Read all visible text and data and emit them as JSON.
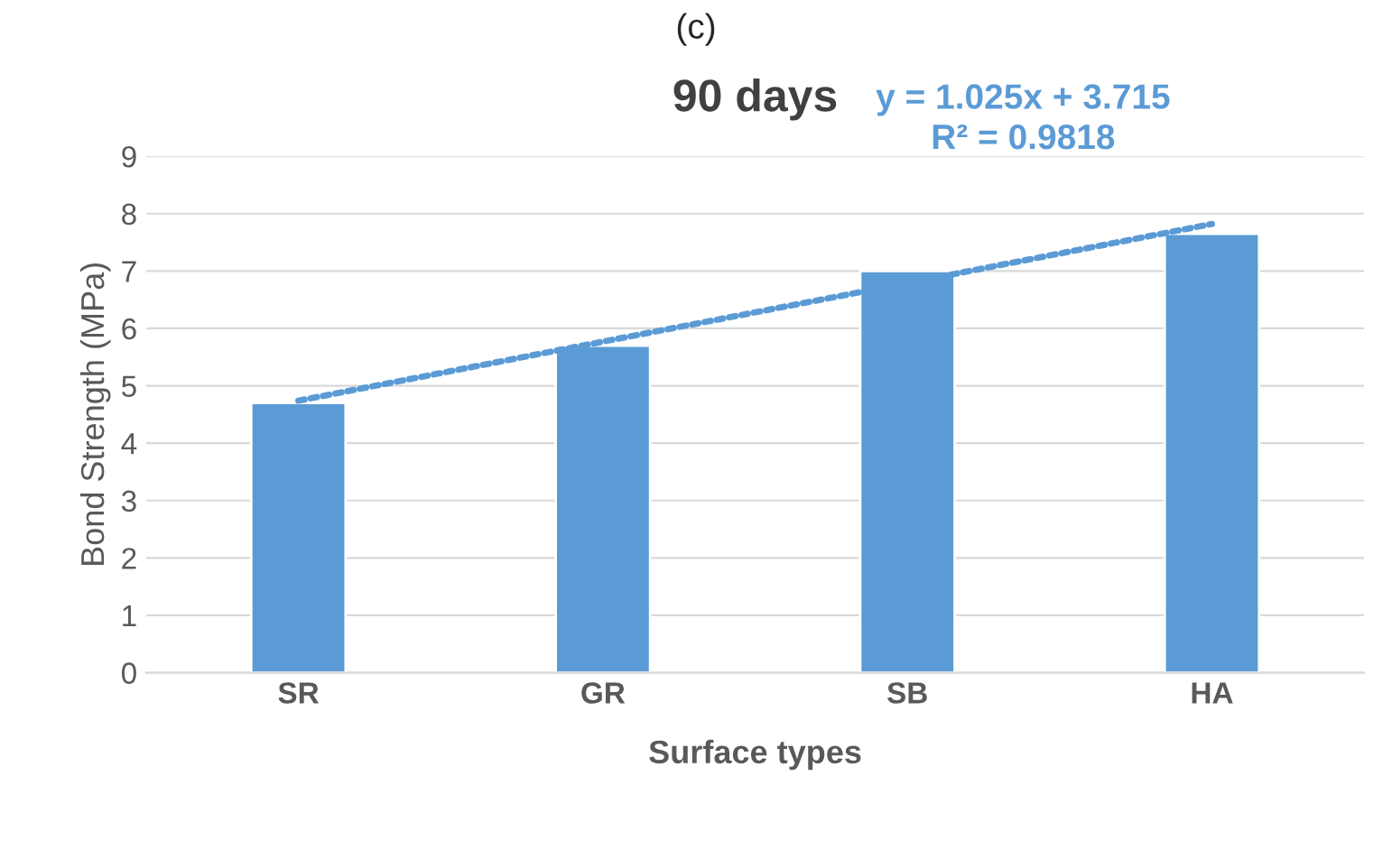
{
  "chart_data": {
    "type": "bar",
    "title": "90 days",
    "xlabel": "Surface types",
    "ylabel": "Bond Strength (MPa)",
    "categories": [
      "SR",
      "GR",
      "SB",
      "HA"
    ],
    "series": [
      {
        "color": "#5b9bd5",
        "values": [
          4.7,
          5.7,
          7.0,
          7.65
        ]
      },
      {
        "type": "line",
        "color": "#5b9bd5",
        "x": [
          "SR",
          "GR",
          "SB",
          "HA"
        ],
        "values": [
          4.74,
          5.77,
          6.79,
          7.82
        ],
        "line_style": "dotted"
      }
    ],
    "ylim": [
      0,
      9
    ],
    "yticks": [
      0,
      1,
      2,
      3,
      4,
      5,
      6,
      7,
      8,
      9
    ],
    "grid": "y",
    "legend": false,
    "annotations": [
      "(c)",
      "y = 1.025x + 3.715\nR² = 0.9818"
    ]
  }
}
